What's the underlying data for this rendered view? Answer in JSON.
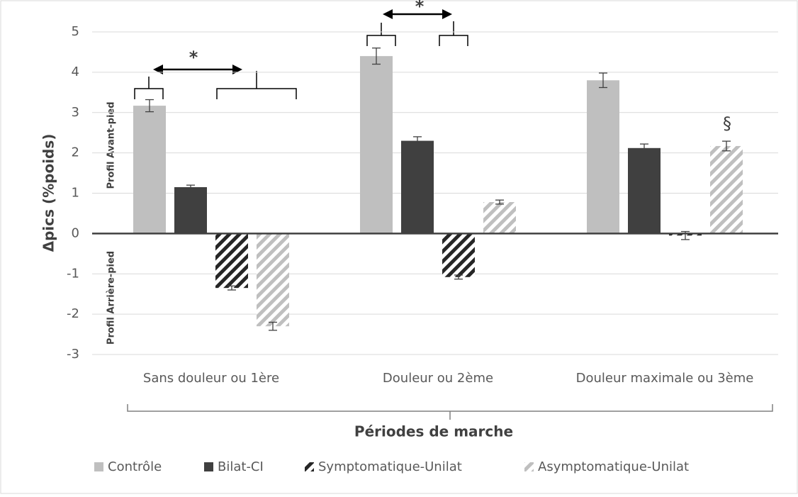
{
  "chart_data": {
    "type": "bar",
    "ylabel": "Δpics (%poids)",
    "xlabel": "Périodes de marche",
    "categories": [
      "Sans douleur ou 1ère",
      "Douleur ou 2ème",
      "Douleur maximale ou 3ème"
    ],
    "series": [
      {
        "name": "Contrôle",
        "color": "#bfbfbf",
        "hatched": false,
        "values": [
          3.17,
          4.4,
          3.8
        ],
        "errors": [
          0.15,
          0.2,
          0.18
        ]
      },
      {
        "name": "Bilat-CI",
        "color": "#404040",
        "hatched": false,
        "values": [
          1.15,
          2.3,
          2.12
        ],
        "errors": [
          0.05,
          0.1,
          0.1
        ]
      },
      {
        "name": "Symptomatique-Unilat",
        "color": "#262626",
        "hatched": true,
        "values": [
          -1.35,
          -1.08,
          -0.05
        ],
        "errors": [
          0.05,
          0.05,
          0.1
        ]
      },
      {
        "name": "Asymptomatique-Unilat",
        "color": "#bfbfbf",
        "hatched": true,
        "values": [
          -2.3,
          0.78,
          2.17
        ],
        "errors": [
          0.1,
          0.05,
          0.12
        ]
      }
    ],
    "ylim": [
      -3,
      5
    ],
    "yticks": [
      -3,
      -2,
      -1,
      0,
      1,
      2,
      3,
      4,
      5
    ],
    "grid": true,
    "legend": "bottom",
    "annotations": [
      "*",
      "*",
      "§",
      "Profil Avant-pied",
      "Profil Arrière-pied"
    ]
  }
}
